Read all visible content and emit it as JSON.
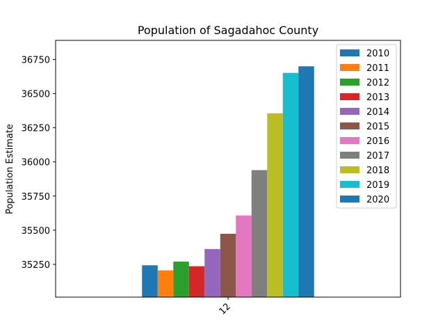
{
  "chart_data": {
    "type": "bar",
    "title": "Population of Sagadahoc County",
    "xlabel": "",
    "ylabel": "Population Estimate",
    "categories": [
      "12"
    ],
    "ylim": [
      35010,
      36890
    ],
    "yticks": [
      35250,
      35500,
      35750,
      36000,
      36250,
      36500,
      36750
    ],
    "grid": false,
    "legend_position": "top-right",
    "series": [
      {
        "name": "2010",
        "values": [
          35243
        ],
        "color": "#1f77b4"
      },
      {
        "name": "2011",
        "values": [
          35206
        ],
        "color": "#ff7f0e"
      },
      {
        "name": "2012",
        "values": [
          35270
        ],
        "color": "#2ca02c"
      },
      {
        "name": "2013",
        "values": [
          35236
        ],
        "color": "#d62728"
      },
      {
        "name": "2014",
        "values": [
          35362
        ],
        "color": "#9467bd"
      },
      {
        "name": "2015",
        "values": [
          35474
        ],
        "color": "#8c564b"
      },
      {
        "name": "2016",
        "values": [
          35608
        ],
        "color": "#e377c2"
      },
      {
        "name": "2017",
        "values": [
          35940
        ],
        "color": "#7f7f7f"
      },
      {
        "name": "2018",
        "values": [
          36356
        ],
        "color": "#bcbd22"
      },
      {
        "name": "2019",
        "values": [
          36652
        ],
        "color": "#17becf"
      },
      {
        "name": "2020",
        "values": [
          36700
        ],
        "color": "#1f77b4"
      }
    ]
  }
}
